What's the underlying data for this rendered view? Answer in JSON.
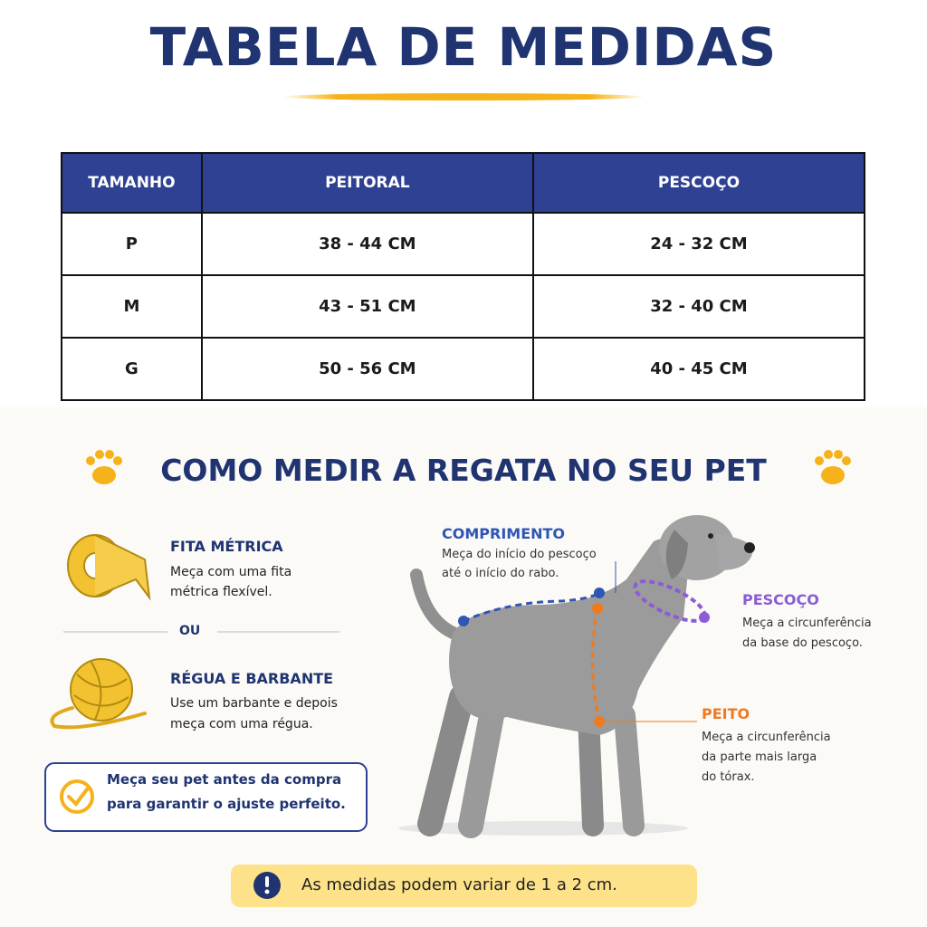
{
  "header": {
    "title": "TABELA DE MEDIDAS"
  },
  "table": {
    "header": [
      "TAMANHO",
      "PEITORAL",
      "PESCOÇO"
    ],
    "rows": [
      [
        "P",
        "38 - 44 CM",
        "24 - 32 CM"
      ],
      [
        "M",
        "43 - 51 CM",
        "32 - 40 CM"
      ],
      [
        "G",
        "50 - 56 CM",
        "40 - 45 CM"
      ]
    ]
  },
  "how_to": {
    "title": "COMO MEDIR A REGATA NO SEU PET",
    "tools": [
      {
        "title": "FITA MÉTRICA",
        "lines": [
          "Meça com uma fita",
          "métrica flexível."
        ]
      },
      {
        "title": "RÉGUA E BARBANTE",
        "lines": [
          "Use um barbante e depois",
          "meça com uma régua."
        ]
      }
    ],
    "separator": "OU",
    "tip": [
      "Meça seu pet antes da compra",
      "para garantir o ajuste perfeito."
    ],
    "measures": {
      "length": {
        "title": "COMPRIMENTO",
        "lines": [
          "Meça do início do pescoço",
          "até o início do rabo."
        ]
      },
      "neck": {
        "title": "PESCOÇO",
        "lines": [
          "Meça a circunferência",
          "da base do pescoço."
        ]
      },
      "chest": {
        "title": "PEITO",
        "lines": [
          "Meça a circunferência",
          "da parte mais larga",
          "do tórax."
        ]
      }
    },
    "note": "As medidas podem variar de 1 a 2 cm."
  }
}
